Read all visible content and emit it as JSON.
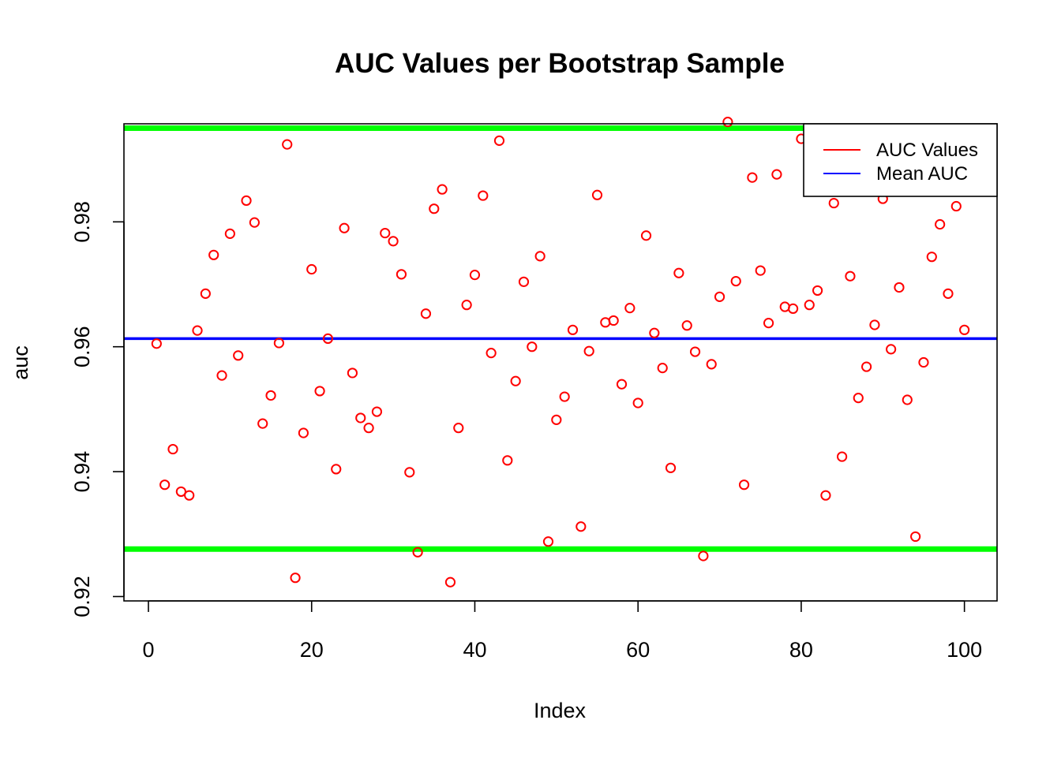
{
  "chart_data": {
    "type": "scatter",
    "title": "AUC Values per Bootstrap Sample",
    "xlabel": "Index",
    "ylabel": "auc",
    "xlim": [
      -3,
      104
    ],
    "ylim": [
      0.9193,
      0.9957
    ],
    "x_ticks": [
      0,
      20,
      40,
      60,
      80,
      100
    ],
    "y_ticks": [
      0.92,
      0.94,
      0.96,
      0.98
    ],
    "x_tick_labels": [
      "0",
      "20",
      "40",
      "60",
      "80",
      "100"
    ],
    "y_tick_labels": [
      "0.92",
      "0.94",
      "0.96",
      "0.98"
    ],
    "grid": false,
    "legend_position": "top-right",
    "legend": [
      {
        "label": "AUC Values",
        "color": "#ff0000"
      },
      {
        "label": "Mean AUC",
        "color": "#0000ff"
      }
    ],
    "series": [
      {
        "name": "AUC Values",
        "color": "#ff0000",
        "marker": "open-circle",
        "x": [
          1,
          2,
          3,
          4,
          5,
          6,
          7,
          8,
          9,
          10,
          11,
          12,
          13,
          14,
          15,
          16,
          17,
          18,
          19,
          20,
          21,
          22,
          23,
          24,
          25,
          26,
          27,
          28,
          29,
          30,
          31,
          32,
          33,
          34,
          35,
          36,
          37,
          38,
          39,
          40,
          41,
          42,
          43,
          44,
          45,
          46,
          47,
          48,
          49,
          50,
          51,
          52,
          53,
          54,
          55,
          56,
          57,
          58,
          59,
          60,
          61,
          62,
          63,
          64,
          65,
          66,
          67,
          68,
          69,
          70,
          71,
          72,
          73,
          74,
          75,
          76,
          77,
          78,
          79,
          80,
          81,
          82,
          83,
          84,
          85,
          86,
          87,
          88,
          89,
          90,
          91,
          92,
          93,
          94,
          95,
          96,
          97,
          98,
          99,
          100
        ],
        "y": [
          0.9605,
          0.9379,
          0.9436,
          0.9368,
          0.9362,
          0.9626,
          0.9685,
          0.9747,
          0.9554,
          0.9781,
          0.9586,
          0.9834,
          0.9799,
          0.9477,
          0.9522,
          0.9606,
          0.9924,
          0.923,
          0.9462,
          0.9724,
          0.9529,
          0.9613,
          0.9404,
          0.979,
          0.9558,
          0.9486,
          0.947,
          0.9496,
          0.9782,
          0.9769,
          0.9716,
          0.9399,
          0.9271,
          0.9653,
          0.9821,
          0.9852,
          0.9223,
          0.947,
          0.9667,
          0.9715,
          0.9842,
          0.959,
          0.993,
          0.9418,
          0.9545,
          0.9704,
          0.96,
          0.9745,
          0.9288,
          0.9483,
          0.952,
          0.9627,
          0.9312,
          0.9593,
          0.9843,
          0.9639,
          0.9642,
          0.954,
          0.9662,
          0.951,
          0.9778,
          0.9622,
          0.9566,
          0.9406,
          0.9718,
          0.9634,
          0.9592,
          0.9265,
          0.9572,
          0.968,
          0.996,
          0.9705,
          0.9379,
          0.9871,
          0.9722,
          0.9638,
          0.9876,
          0.9664,
          0.9661,
          0.9933,
          0.9667,
          0.969,
          0.9362,
          0.983,
          0.9424,
          0.9713,
          0.9518,
          0.9568,
          0.9635,
          0.9837,
          0.9596,
          0.9695,
          0.9515,
          0.9296,
          0.9575,
          0.9744,
          0.9796,
          0.9685,
          0.9825,
          0.9627
        ]
      }
    ],
    "reference_lines": [
      {
        "name": "Mean AUC",
        "y": 0.9613,
        "color": "#0000ff"
      },
      {
        "name": "",
        "y": 0.995,
        "color": "#00ff00"
      },
      {
        "name": "",
        "y": 0.9276,
        "color": "#00ff00"
      }
    ]
  }
}
